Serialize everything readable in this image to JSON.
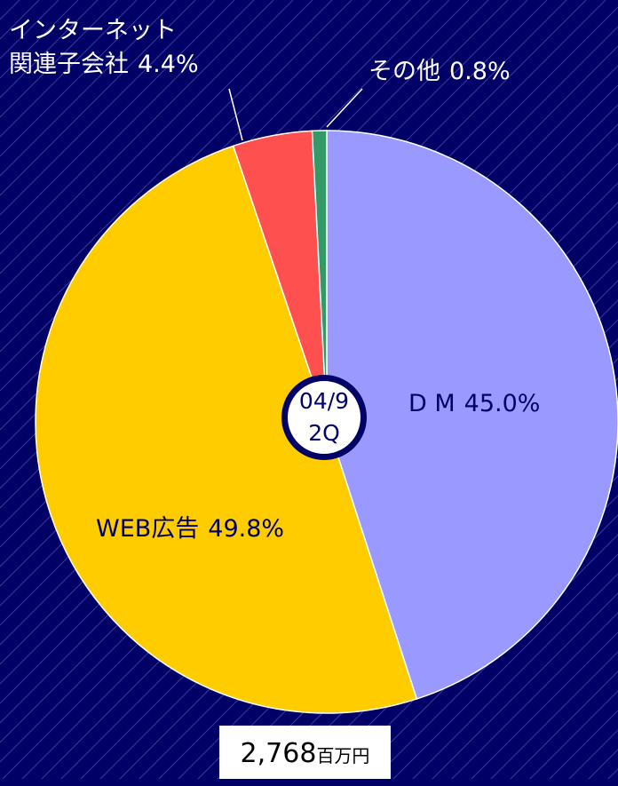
{
  "chart_data": {
    "type": "pie",
    "categories": [
      "D M",
      "WEB広告",
      "インターネット\n関連子会社",
      "その他"
    ],
    "values": [
      45.0,
      49.8,
      4.4,
      0.8
    ],
    "value_labels": [
      "45.0%",
      "49.8%",
      "4.4%",
      "0.8%"
    ],
    "colors": [
      "#9999ff",
      "#ffcc00",
      "#ff5050",
      "#339966"
    ],
    "center_label": "04/9\n2Q",
    "total": {
      "value": "2,768",
      "unit": "百万円"
    }
  }
}
